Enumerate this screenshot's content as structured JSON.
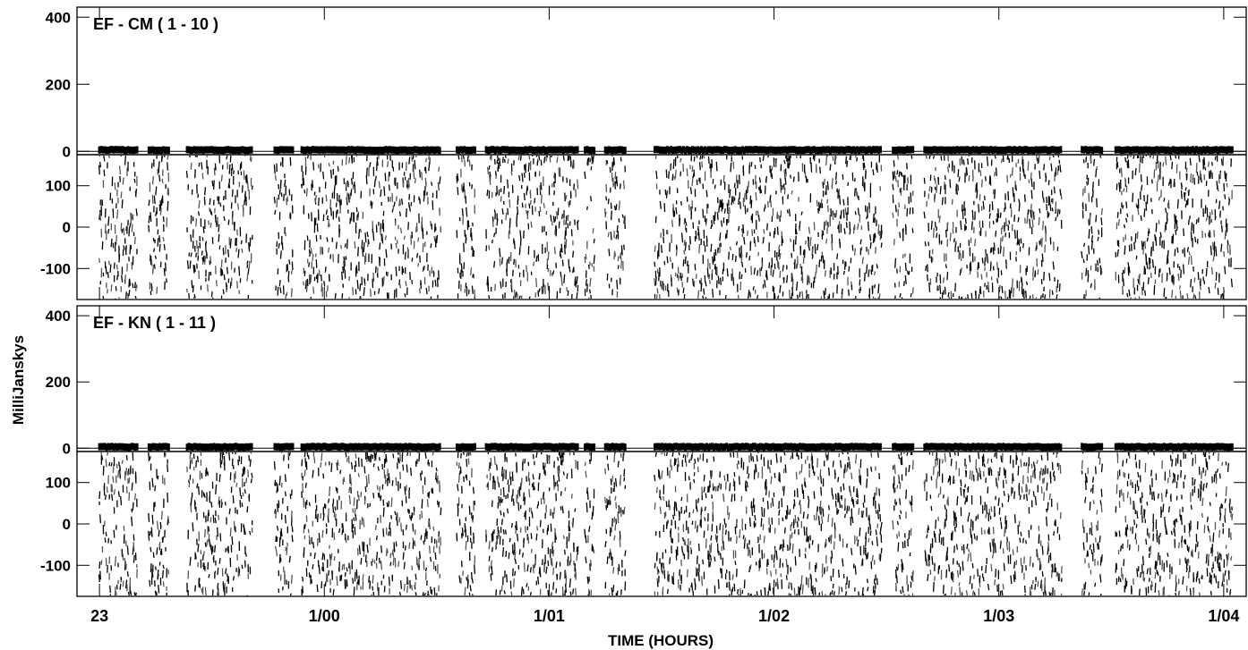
{
  "chart_data": {
    "type": "scatter",
    "ylabel": "MilliJanskys",
    "xlabel": "TIME (HOURS)",
    "x_ticks": [
      "23",
      "1/00",
      "1/01",
      "1/02",
      "1/03",
      "1/04"
    ],
    "x_range_hours": [
      22.9,
      28.1
    ],
    "scan_intervals_hours": [
      [
        23.0,
        23.17
      ],
      [
        23.22,
        23.31
      ],
      [
        23.39,
        23.68
      ],
      [
        23.78,
        23.86
      ],
      [
        23.9,
        24.52
      ],
      [
        24.59,
        24.67
      ],
      [
        24.72,
        25.13
      ],
      [
        25.16,
        25.2
      ],
      [
        25.25,
        25.34
      ],
      [
        25.47,
        26.48
      ],
      [
        26.53,
        26.62
      ],
      [
        26.67,
        27.28
      ],
      [
        27.37,
        27.46
      ],
      [
        27.52,
        28.04
      ]
    ],
    "baselines": [
      {
        "label": "EF - CM ( 1 - 10 )",
        "amplitude": {
          "ylim": [
            -10,
            430
          ],
          "yticks": [
            0,
            200,
            400
          ],
          "tick_labels": [
            "0",
            "200",
            "400"
          ],
          "typical_value": 4
        },
        "phase": {
          "ylim": [
            -175,
            175
          ],
          "yticks": [
            -100,
            0,
            100
          ],
          "tick_labels": [
            "-100",
            "0",
            "100"
          ],
          "distribution": "uniform scatter from -180 to 180"
        }
      },
      {
        "label": "EF - KN ( 1 - 11 )",
        "amplitude": {
          "ylim": [
            -10,
            430
          ],
          "yticks": [
            0,
            200,
            400
          ],
          "tick_labels": [
            "0",
            "200",
            "400"
          ],
          "typical_value": 4
        },
        "phase": {
          "ylim": [
            -175,
            175
          ],
          "yticks": [
            -100,
            0,
            100
          ],
          "tick_labels": [
            "-100",
            "0",
            "100"
          ],
          "distribution": "uniform scatter from -180 to 180"
        }
      }
    ]
  }
}
